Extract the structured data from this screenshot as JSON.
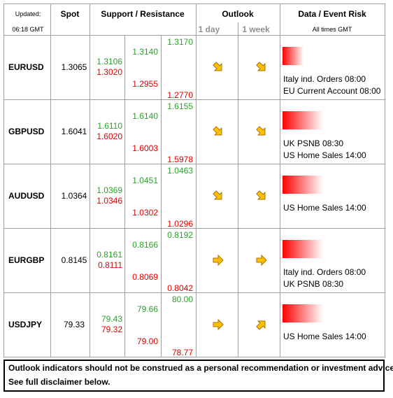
{
  "header": {
    "updated": "Updated;",
    "time": "06:18 GMT",
    "spot": "Spot",
    "support_resistance": "Support / Resistance",
    "outlook": "Outlook",
    "day": "1 day",
    "week": "1 week",
    "events": "Data / Event Risk",
    "timezone": "All times GMT"
  },
  "rows": [
    {
      "pair": "EURUSD",
      "spot": "1.3065",
      "levels": [
        [
          "1.3106",
          "1.3020"
        ],
        [
          "1.3140",
          "1.2955"
        ],
        [
          "1.3170",
          "1.2770"
        ]
      ],
      "events": [
        "Italy ind. Orders 08:00",
        "EU Current Account 08:00"
      ]
    },
    {
      "pair": "GBPUSD",
      "spot": "1.6041",
      "levels": [
        [
          "1.6110",
          "1.6020"
        ],
        [
          "1.6140",
          "1.6003"
        ],
        [
          "1.6155",
          "1.5978"
        ]
      ],
      "events": [
        "UK PSNB 08:30",
        "US Home Sales 14:00"
      ]
    },
    {
      "pair": "AUDUSD",
      "spot": "1.0364",
      "levels": [
        [
          "1.0369",
          "1.0346"
        ],
        [
          "1.0451",
          "1.0302"
        ],
        [
          "1.0463",
          "1.0296"
        ]
      ],
      "events": [
        "US Home Sales 14:00"
      ]
    },
    {
      "pair": "EURGBP",
      "spot": "0.8145",
      "levels": [
        [
          "0.8161",
          "0.8111"
        ],
        [
          "0.8166",
          "0.8069"
        ],
        [
          "0.8192",
          "0.8042"
        ]
      ],
      "events": [
        "Italy ind. Orders 08:00",
        "UK PSNB 08:30"
      ]
    },
    {
      "pair": "USDJPY",
      "spot": "79.33",
      "levels": [
        [
          "79.43",
          "79.32"
        ],
        [
          "79.66",
          "79.00"
        ],
        [
          "80.00",
          "78.77"
        ]
      ],
      "events": [
        "US Home Sales 14:00"
      ]
    }
  ],
  "footer": [
    "Outlook indicators should not be construed as a personal recommendation or investment advice.",
    "See full disclaimer below."
  ]
}
